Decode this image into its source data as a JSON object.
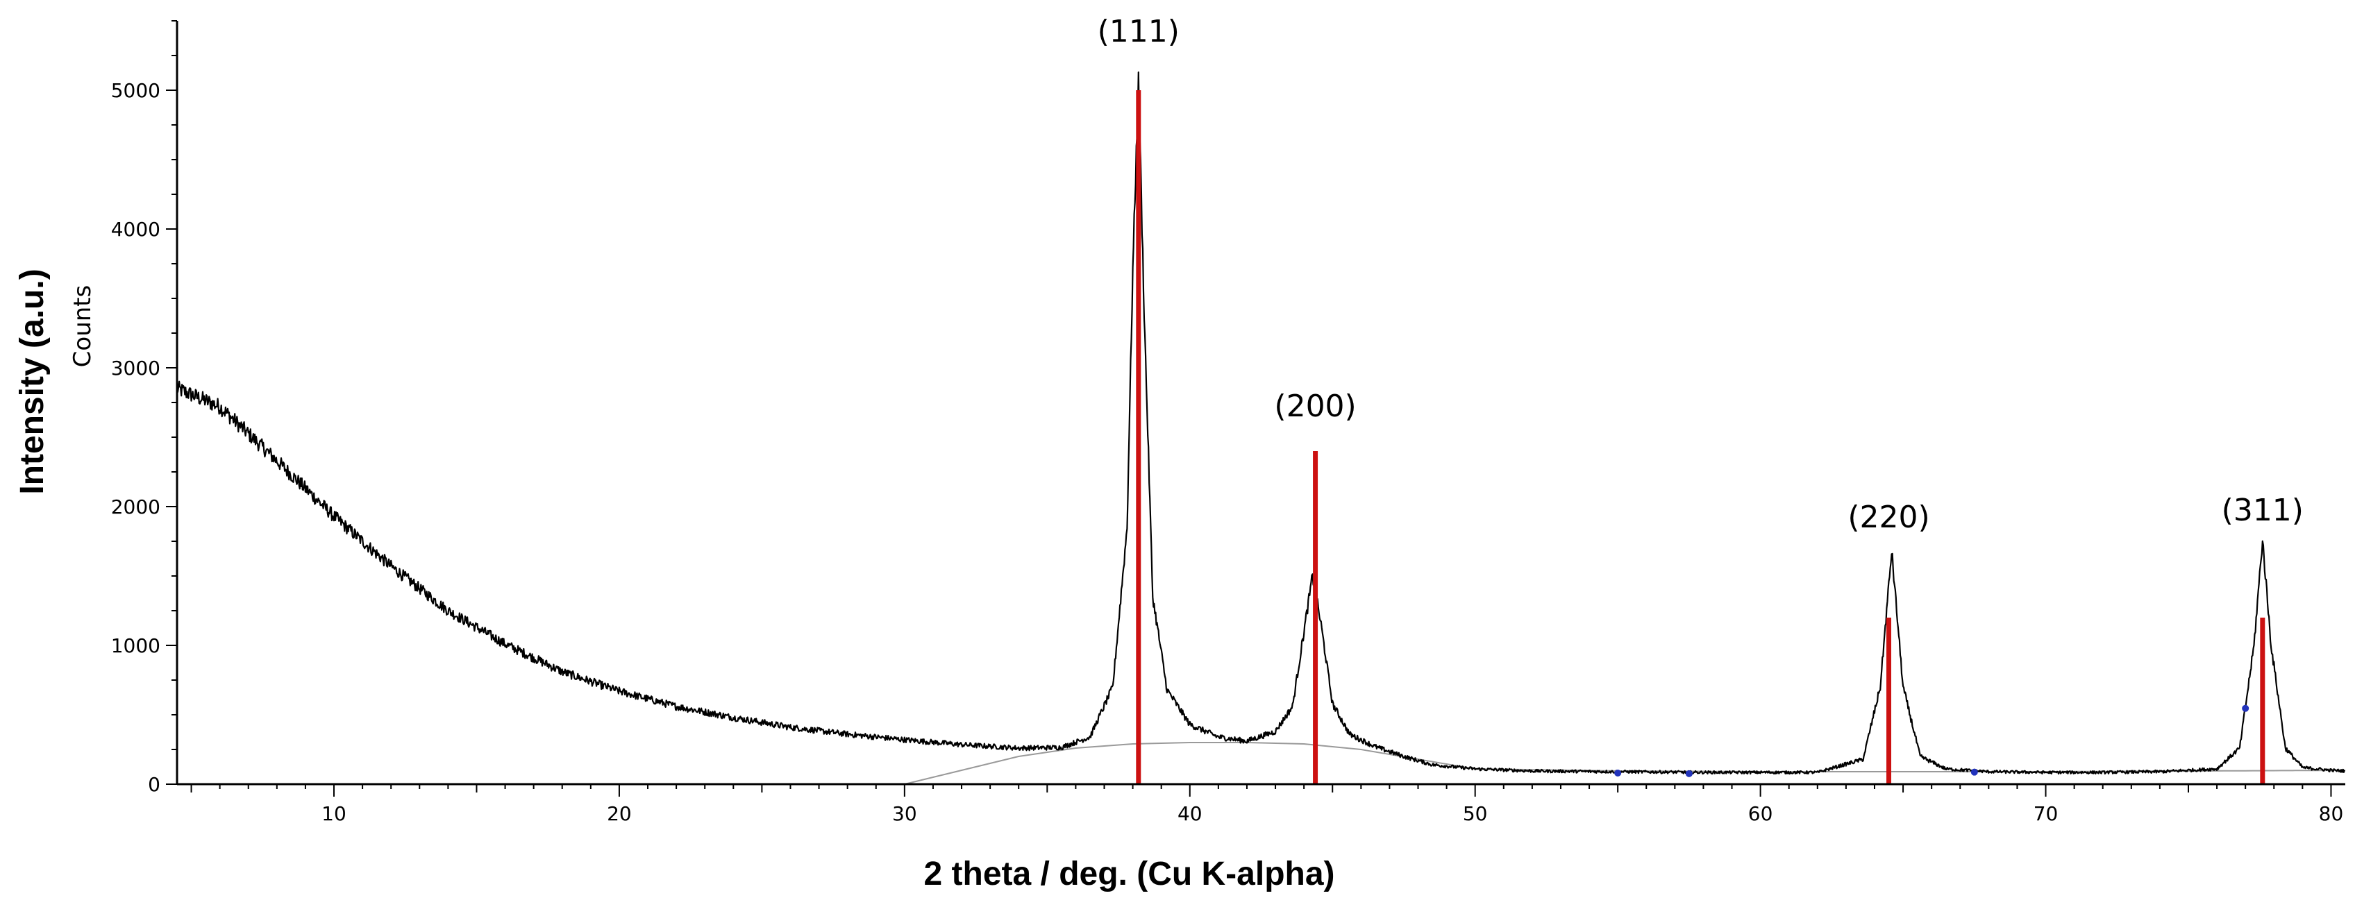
{
  "chart_data": {
    "type": "line",
    "xlabel": "2 theta / deg. (Cu K-alpha)",
    "ylabel": "Intensity (a.u.)",
    "ylabel_secondary": "Counts",
    "xlim": [
      4.5,
      80.5
    ],
    "ylim": [
      0,
      5500
    ],
    "x_ticks": [
      10,
      20,
      30,
      40,
      50,
      60,
      70,
      80
    ],
    "y_ticks": [
      0,
      1000,
      2000,
      3000,
      4000,
      5000
    ],
    "grid": false,
    "colors": {
      "pattern": "#000000",
      "reference": "#cc1111",
      "background": "#9a9a9a",
      "marker": "#2233bb"
    },
    "series": [
      {
        "kind": "measured-pattern",
        "x": [
          4.5,
          6,
          8,
          10,
          12,
          14,
          16,
          18,
          20,
          22,
          24,
          26,
          28,
          30,
          32,
          34,
          35.5,
          36.5,
          37.3,
          37.8,
          38.0,
          38.2,
          38.4,
          38.7,
          39.2,
          40,
          41,
          42,
          43,
          43.6,
          44.0,
          44.3,
          44.6,
          45.0,
          45.6,
          46.5,
          47.5,
          48.5,
          50,
          52,
          55,
          58,
          60,
          62,
          63.6,
          64.2,
          64.6,
          65.0,
          65.6,
          66.5,
          68,
          70,
          72,
          74,
          76,
          76.8,
          77.3,
          77.6,
          77.9,
          78.4,
          79,
          80,
          80.5
        ],
        "y": [
          2850,
          2720,
          2330,
          1930,
          1570,
          1250,
          1010,
          810,
          670,
          560,
          480,
          410,
          360,
          320,
          285,
          260,
          265,
          340,
          700,
          1850,
          3700,
          5060,
          3400,
          1350,
          680,
          430,
          340,
          310,
          380,
          560,
          1100,
          1500,
          1150,
          580,
          360,
          270,
          200,
          140,
          110,
          95,
          90,
          85,
          85,
          85,
          180,
          700,
          1680,
          700,
          200,
          110,
          90,
          85,
          85,
          90,
          110,
          260,
          1000,
          1760,
          1000,
          260,
          120,
          100,
          95
        ]
      },
      {
        "kind": "background",
        "x": [
          4.5,
          30,
          34,
          36,
          38,
          40,
          42,
          44,
          46,
          48,
          50,
          55,
          60,
          70,
          80.5
        ],
        "y": [
          0,
          0,
          200,
          260,
          290,
          300,
          300,
          290,
          250,
          180,
          110,
          95,
          90,
          90,
          100
        ]
      }
    ],
    "reference_sticks": [
      {
        "x": 38.2,
        "y": 5000
      },
      {
        "x": 44.4,
        "y": 2400
      },
      {
        "x": 64.5,
        "y": 1200
      },
      {
        "x": 77.6,
        "y": 1200
      }
    ],
    "markers": [
      55.0,
      57.5,
      67.5,
      77.0
    ],
    "annotations": [
      {
        "text": "(111)",
        "x": 38.2,
        "y": 5350
      },
      {
        "text": "(200)",
        "x": 44.4,
        "y": 2650
      },
      {
        "text": "(220)",
        "x": 64.5,
        "y": 1850
      },
      {
        "text": "(311)",
        "x": 77.6,
        "y": 1900
      }
    ]
  }
}
